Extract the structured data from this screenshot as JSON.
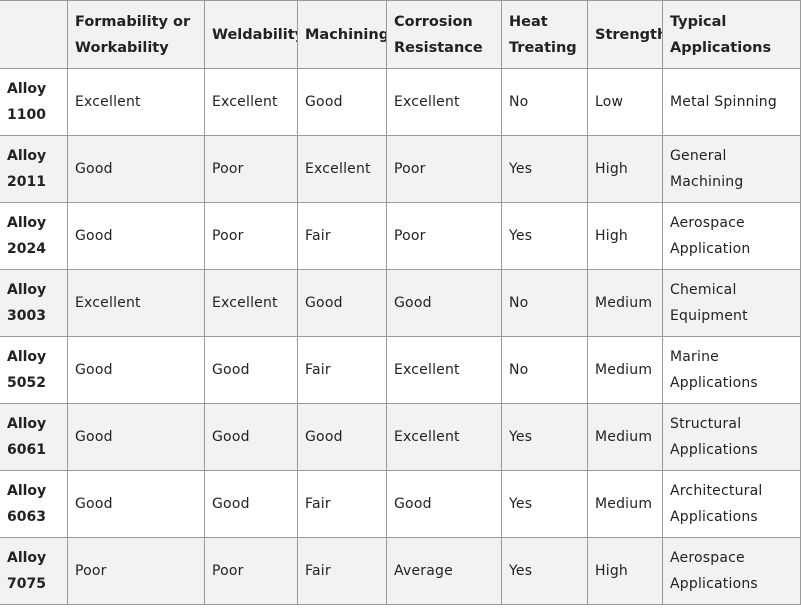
{
  "table": {
    "headers": [
      "",
      "Formability or Workability",
      "Weldability",
      "Machining",
      "Corrosion Resistance",
      "Heat Treating",
      "Strength",
      "Typical Applications"
    ],
    "rows": [
      {
        "alloy": "Alloy",
        "number": "1100",
        "cells": [
          "Excellent",
          "Excellent",
          "Good",
          "Excellent",
          "No",
          "Low",
          "Metal Spinning"
        ]
      },
      {
        "alloy": "Alloy",
        "number": "2011",
        "cells": [
          "Good",
          "Poor",
          "Excellent",
          "Poor",
          "Yes",
          "High",
          "General Machining"
        ]
      },
      {
        "alloy": "Alloy",
        "number": "2024",
        "cells": [
          "Good",
          "Poor",
          "Fair",
          "Poor",
          "Yes",
          "High",
          "Aerospace Application"
        ]
      },
      {
        "alloy": "Alloy",
        "number": "3003",
        "cells": [
          "Excellent",
          "Excellent",
          "Good",
          "Good",
          "No",
          "Medium",
          "Chemical Equipment"
        ]
      },
      {
        "alloy": "Alloy",
        "number": "5052",
        "cells": [
          "Good",
          "Good",
          "Fair",
          "Excellent",
          "No",
          "Medium",
          "Marine Applications"
        ]
      },
      {
        "alloy": "Alloy",
        "number": "6061",
        "cells": [
          "Good",
          "Good",
          "Good",
          "Excellent",
          "Yes",
          "Medium",
          "Structural Applications"
        ]
      },
      {
        "alloy": "Alloy",
        "number": "6063",
        "cells": [
          "Good",
          "Good",
          "Fair",
          "Good",
          "Yes",
          "Medium",
          "Architectural Applications"
        ]
      },
      {
        "alloy": "Alloy",
        "number": "7075",
        "cells": [
          "Poor",
          "Poor",
          "Fair",
          "Average",
          "Yes",
          "High",
          "Aerospace Applications"
        ]
      }
    ]
  },
  "colors": {
    "header_bg": "#f2f2f2",
    "alt_row_bg": "#f2f2f2",
    "border": "#9a9a9a",
    "text": "#222222"
  }
}
